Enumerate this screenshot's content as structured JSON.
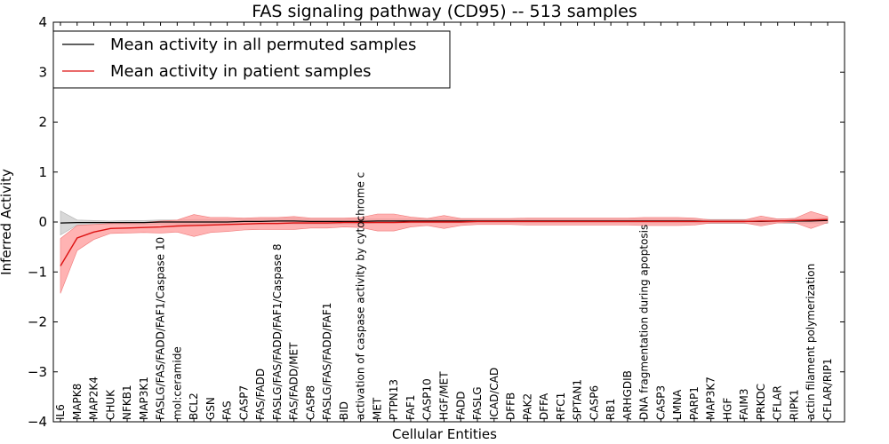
{
  "chart_data": {
    "type": "line",
    "title": "FAS signaling pathway (CD95) -- 513 samples",
    "xlabel": "Cellular Entities",
    "ylabel": "Inferred Activity",
    "ylim": [
      -4,
      4
    ],
    "yticks": [
      -4,
      -3,
      -2,
      -1,
      0,
      1,
      2,
      3,
      4
    ],
    "legend_position": "top-left",
    "categories": [
      "IL6",
      "MAPK8",
      "MAP2K4",
      "CHUK",
      "NFKB1",
      "MAP3K1",
      "FASLG/FAS/FADD/FAF1/Caspase 10",
      "mol:ceramide",
      "BCL2",
      "GSN",
      "FAS",
      "CASP7",
      "FAS/FADD",
      "FASLG/FAS/FADD/FAF1/Caspase 8",
      "FAS/FADD/MET",
      "CASP8",
      "FASLG/FAS/FADD/FAF1",
      "BID",
      "activation of caspase activity by cytochrome c",
      "MET",
      "PTPN13",
      "FAF1",
      "CASP10",
      "HGF/MET",
      "FADD",
      "FASLG",
      "ICAD/CAD",
      "DFFB",
      "PAK2",
      "DFFA",
      "RFC1",
      "SPTAN1",
      "CASP6",
      "RB1",
      "ARHGDIB",
      "DNA fragmentation during apoptosis",
      "CASP3",
      "LMNA",
      "PARP1",
      "MAP3K7",
      "HGF",
      "FAIM3",
      "PRKDC",
      "CFLAR",
      "RIPK1",
      "actin filament polymerization",
      "CFLAR/RIP1"
    ],
    "series": [
      {
        "name": "Mean activity in all permuted samples",
        "color": "#000000",
        "band_color": "#c8c8c8",
        "values": [
          -0.02,
          -0.01,
          -0.01,
          -0.01,
          -0.01,
          -0.01,
          0.0,
          0.0,
          0.0,
          0.0,
          0.0,
          0.01,
          0.01,
          0.02,
          0.02,
          0.01,
          0.01,
          0.01,
          0.01,
          0.02,
          0.02,
          0.02,
          0.02,
          0.02,
          0.02,
          0.02,
          0.02,
          0.02,
          0.02,
          0.02,
          0.02,
          0.02,
          0.02,
          0.02,
          0.02,
          0.02,
          0.02,
          0.02,
          0.02,
          0.01,
          0.01,
          0.01,
          0.01,
          0.02,
          0.02,
          0.02,
          0.03
        ],
        "band": [
          0.24,
          0.05,
          0.04,
          0.03,
          0.04,
          0.04,
          0.04,
          0.04,
          0.05,
          0.05,
          0.05,
          0.05,
          0.05,
          0.05,
          0.06,
          0.05,
          0.05,
          0.05,
          0.05,
          0.04,
          0.04,
          0.04,
          0.04,
          0.04,
          0.04,
          0.04,
          0.04,
          0.04,
          0.04,
          0.04,
          0.04,
          0.04,
          0.04,
          0.04,
          0.04,
          0.04,
          0.04,
          0.04,
          0.04,
          0.04,
          0.04,
          0.04,
          0.05,
          0.04,
          0.05,
          0.04,
          0.06
        ]
      },
      {
        "name": "Mean activity in patient samples",
        "color": "#dd1111",
        "band_color": "#ff9a9a",
        "values": [
          -0.88,
          -0.32,
          -0.2,
          -0.13,
          -0.12,
          -0.11,
          -0.1,
          -0.08,
          -0.07,
          -0.06,
          -0.05,
          -0.04,
          -0.03,
          -0.03,
          -0.02,
          -0.02,
          -0.02,
          -0.01,
          -0.01,
          -0.01,
          -0.01,
          0.0,
          0.0,
          0.0,
          0.0,
          0.01,
          0.01,
          0.01,
          0.01,
          0.01,
          0.01,
          0.01,
          0.01,
          0.01,
          0.01,
          0.01,
          0.01,
          0.01,
          0.01,
          0.01,
          0.01,
          0.01,
          0.02,
          0.02,
          0.03,
          0.04,
          0.05
        ],
        "band": [
          0.55,
          0.25,
          0.15,
          0.1,
          0.1,
          0.1,
          0.12,
          0.12,
          0.22,
          0.15,
          0.14,
          0.12,
          0.12,
          0.12,
          0.13,
          0.1,
          0.1,
          0.09,
          0.1,
          0.17,
          0.17,
          0.1,
          0.07,
          0.13,
          0.07,
          0.06,
          0.06,
          0.06,
          0.07,
          0.07,
          0.07,
          0.07,
          0.07,
          0.07,
          0.07,
          0.08,
          0.08,
          0.08,
          0.07,
          0.03,
          0.03,
          0.03,
          0.1,
          0.04,
          0.04,
          0.17,
          0.06
        ]
      }
    ]
  }
}
